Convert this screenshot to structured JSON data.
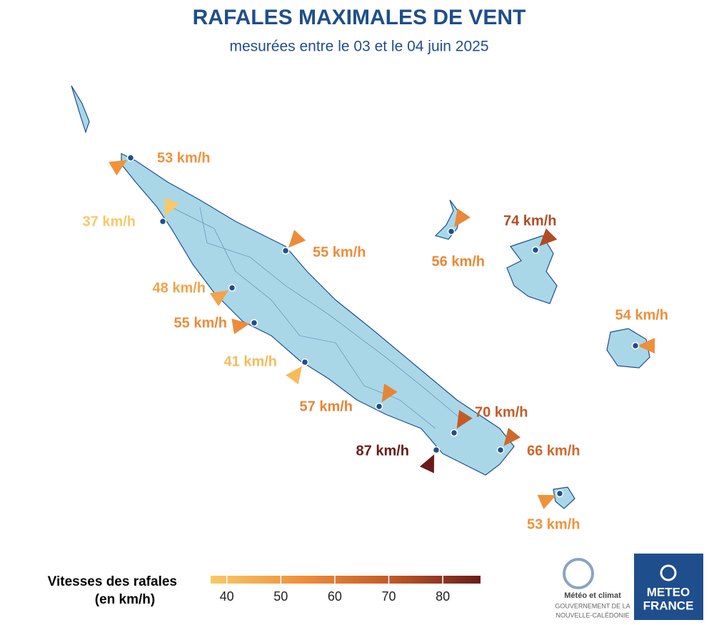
{
  "header": {
    "title": "RAFALES MAXIMALES DE VENT",
    "subtitle": "mesurées entre le 03 et le 04 juin 2025"
  },
  "stations": [
    {
      "value": 53,
      "label": "53 km/h"
    },
    {
      "value": 37,
      "label": "37 km/h"
    },
    {
      "value": 55,
      "label": "55 km/h"
    },
    {
      "value": 48,
      "label": "48 km/h"
    },
    {
      "value": 55,
      "label": "55 km/h"
    },
    {
      "value": 41,
      "label": "41 km/h"
    },
    {
      "value": 57,
      "label": "57 km/h"
    },
    {
      "value": 56,
      "label": "56 km/h"
    },
    {
      "value": 74,
      "label": "74 km/h"
    },
    {
      "value": 54,
      "label": "54 km/h"
    },
    {
      "value": 70,
      "label": "70 km/h"
    },
    {
      "value": 87,
      "label": "87 km/h"
    },
    {
      "value": 66,
      "label": "66 km/h"
    },
    {
      "value": 53,
      "label": "53 km/h"
    }
  ],
  "legend": {
    "title": [
      "Vitesses des rafales",
      "(en km/h)"
    ],
    "range": [
      37,
      87
    ],
    "ticks": [
      40,
      50,
      60,
      70,
      80
    ],
    "colors": [
      "#f9c867",
      "#f0903a",
      "#c25a28",
      "#6a1c1a"
    ]
  },
  "logos": {
    "partner": [
      "Météo et climat",
      "GOUVERNEMENT DE LA",
      "NOUVELLE-CALÉDONIE"
    ],
    "brand": [
      "METEO",
      "FRANCE"
    ]
  }
}
